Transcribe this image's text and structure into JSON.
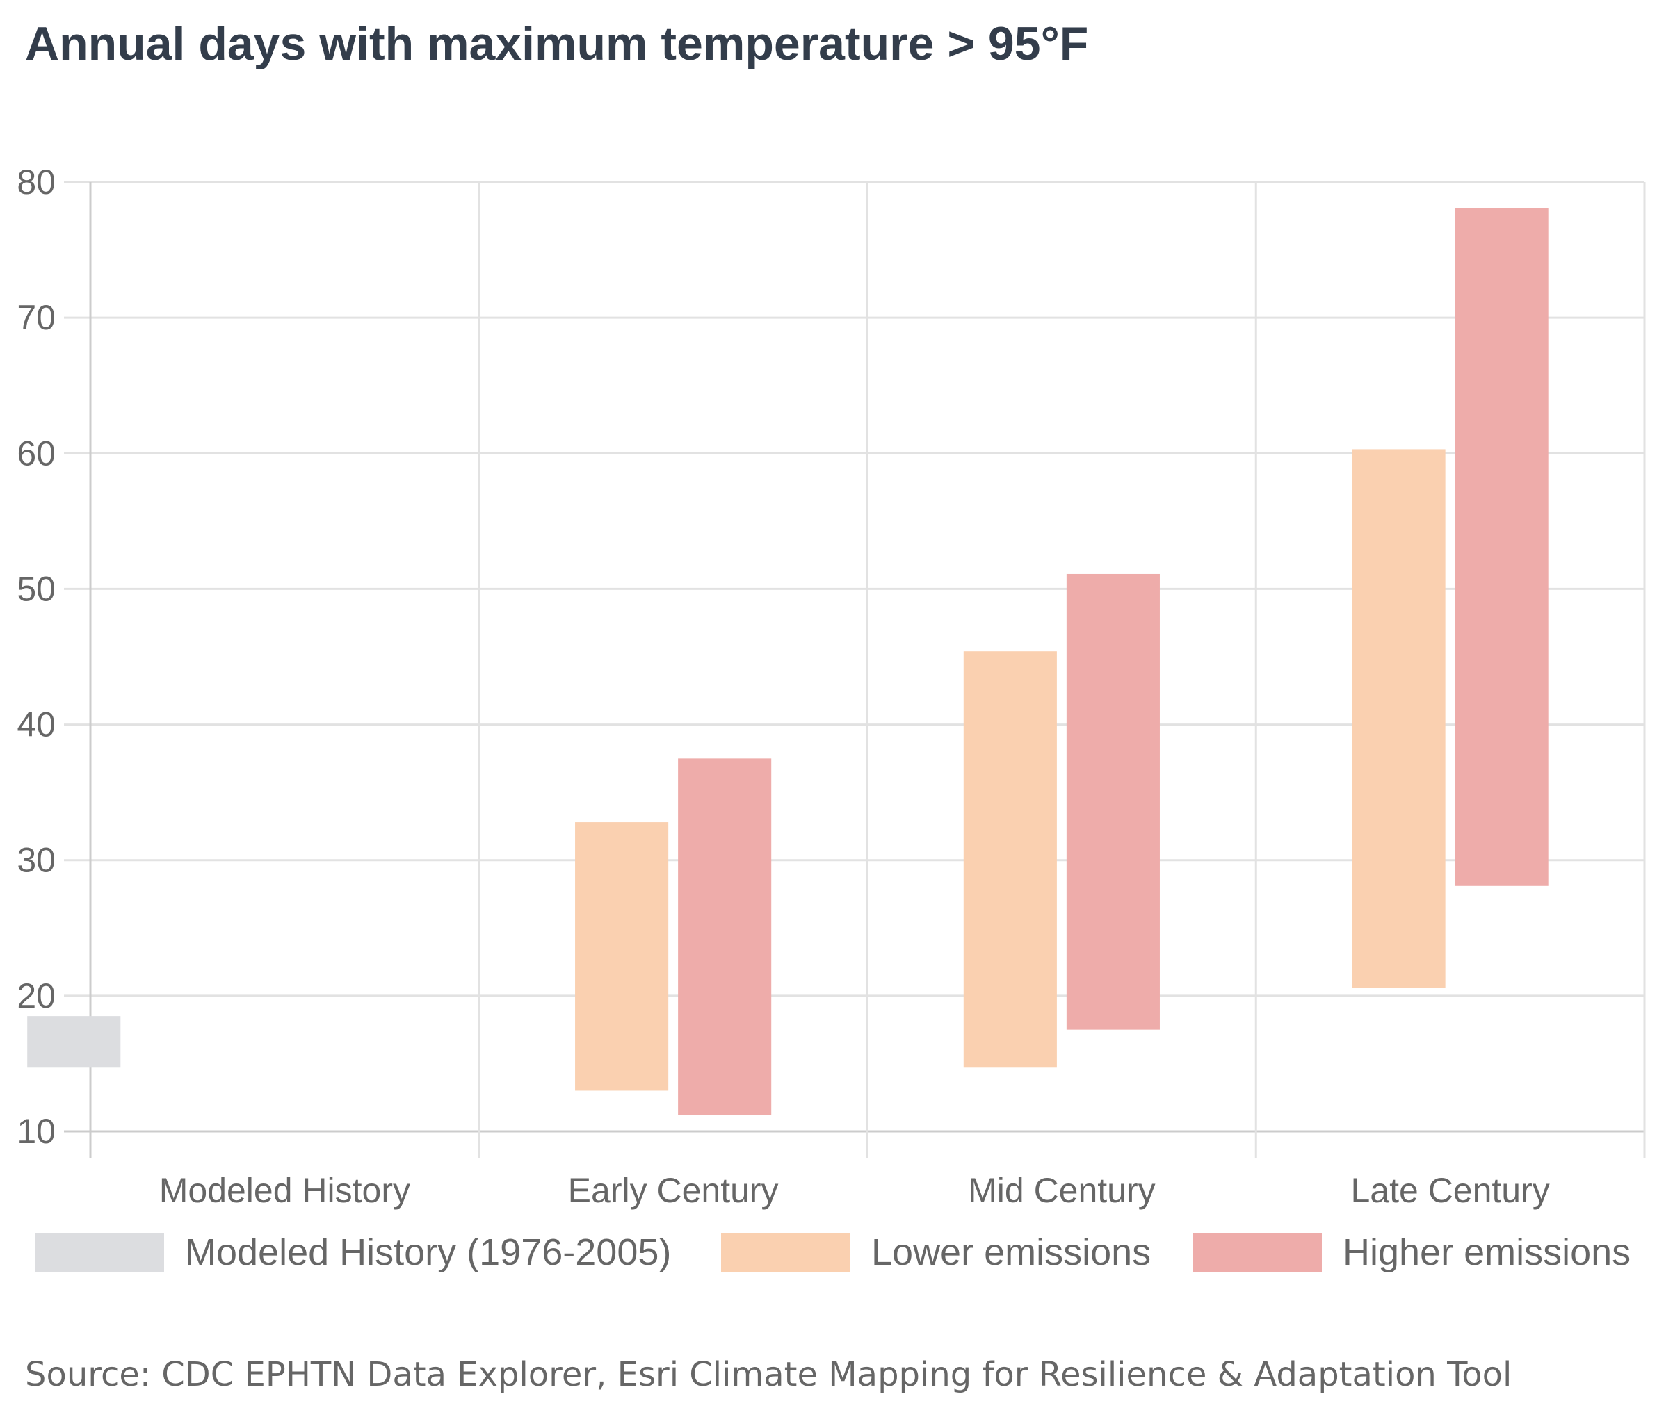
{
  "chart_data": {
    "type": "bar",
    "subtype": "floating-range",
    "title": "Annual days with maximum temperature > 95°F",
    "xlabel": "",
    "ylabel": "",
    "ylim": [
      10,
      80
    ],
    "yticks": [
      10,
      20,
      30,
      40,
      50,
      60,
      70,
      80
    ],
    "grid": true,
    "legend_position": "bottom",
    "categories": [
      "Modeled History",
      "Early Century",
      "Mid Century",
      "Late Century"
    ],
    "series": [
      {
        "name": "Modeled History (1976-2005)",
        "color": "#dcdde0",
        "ranges": [
          [
            14.7,
            18.5
          ],
          null,
          null,
          null
        ]
      },
      {
        "name": "Lower emissions",
        "color": "#fad0b0",
        "ranges": [
          null,
          [
            13.0,
            32.8
          ],
          [
            14.7,
            45.4
          ],
          [
            20.6,
            60.3
          ]
        ]
      },
      {
        "name": "Higher emissions",
        "color": "#eeacaa",
        "ranges": [
          null,
          [
            11.2,
            37.5
          ],
          [
            17.5,
            51.1
          ],
          [
            28.1,
            78.1
          ]
        ]
      }
    ],
    "source": "Source: CDC EPHTN Data Explorer, Esri Climate Mapping for Resilience & Adaptation Tool"
  }
}
